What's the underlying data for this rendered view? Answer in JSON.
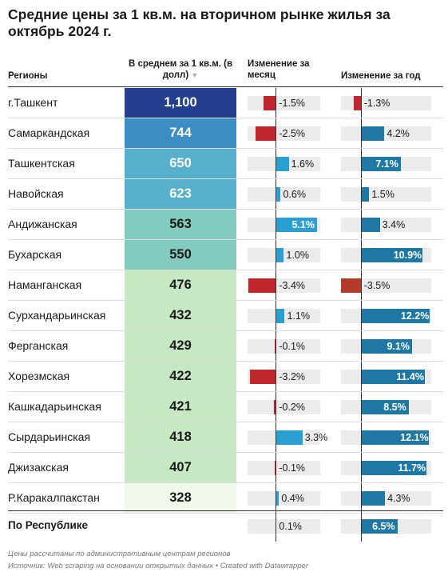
{
  "chart_data": {
    "type": "table",
    "title": "Средние цены за 1 кв.м. на вторичном рынке жилья за октябрь 2024 г.",
    "columns": {
      "region": "Регионы",
      "price": "В среднем за 1 кв.м. (в долл)",
      "sort_icon": "▼",
      "month": "Изменение за месяц",
      "year": "Изменение за год"
    },
    "rows": [
      {
        "region": "г.Ташкент",
        "price": "1,100",
        "month": "-1.5%",
        "year": "-1.3%",
        "price_value": 1100,
        "month_value": -1.5,
        "year_value": -1.3
      },
      {
        "region": "Самаркандская",
        "price": "744",
        "month": "-2.5%",
        "year": "4.2%",
        "price_value": 744,
        "month_value": -2.5,
        "year_value": 4.2
      },
      {
        "region": "Ташкентская",
        "price": "650",
        "month": "1.6%",
        "year": "7.1%",
        "price_value": 650,
        "month_value": 1.6,
        "year_value": 7.1
      },
      {
        "region": "Навойская",
        "price": "623",
        "month": "0.6%",
        "year": "1.5%",
        "price_value": 623,
        "month_value": 0.6,
        "year_value": 1.5
      },
      {
        "region": "Андижанская",
        "price": "563",
        "month": "5.1%",
        "year": "3.4%",
        "price_value": 563,
        "month_value": 5.1,
        "year_value": 3.4
      },
      {
        "region": "Бухарская",
        "price": "550",
        "month": "1.0%",
        "year": "10.9%",
        "price_value": 550,
        "month_value": 1.0,
        "year_value": 10.9
      },
      {
        "region": "Наманганская",
        "price": "476",
        "month": "-3.4%",
        "year": "-3.5%",
        "price_value": 476,
        "month_value": -3.4,
        "year_value": -3.5
      },
      {
        "region": "Сурхандарьинская",
        "price": "432",
        "month": "1.1%",
        "year": "12.2%",
        "price_value": 432,
        "month_value": 1.1,
        "year_value": 12.2
      },
      {
        "region": "Ферганская",
        "price": "429",
        "month": "-0.1%",
        "year": "9.1%",
        "price_value": 429,
        "month_value": -0.1,
        "year_value": 9.1
      },
      {
        "region": "Хорезмская",
        "price": "422",
        "month": "-3.2%",
        "year": "11.4%",
        "price_value": 422,
        "month_value": -3.2,
        "year_value": 11.4
      },
      {
        "region": "Кашкадарьинская",
        "price": "421",
        "month": "-0.2%",
        "year": "8.5%",
        "price_value": 421,
        "month_value": -0.2,
        "year_value": 8.5
      },
      {
        "region": "Сырдарьинская",
        "price": "418",
        "month": "3.3%",
        "year": "12.1%",
        "price_value": 418,
        "month_value": 3.3,
        "year_value": 12.1
      },
      {
        "region": "Джизакская",
        "price": "407",
        "month": "-0.1%",
        "year": "11.7%",
        "price_value": 407,
        "month_value": -0.1,
        "year_value": 11.7
      },
      {
        "region": "Р.Каракалпакстан",
        "price": "328",
        "month": "0.4%",
        "year": "4.3%",
        "price_value": 328,
        "month_value": 0.4,
        "year_value": 4.3
      }
    ],
    "total": {
      "region": "По Республике",
      "month": "0.1%",
      "year": "6.5%",
      "month_value": 0.1,
      "year_value": 6.5
    },
    "month_range": [
      -3.5,
      5.5
    ],
    "year_range": [
      -3.5,
      12.5
    ]
  },
  "footer": {
    "note": "Цены рассчитаны по административным центрам регионов",
    "source": "Источник: Web scraping на основании открытых данных • Created with Datawrapper"
  },
  "colors": {
    "negative": "#c0272d",
    "negative_strong": "#b43a2a",
    "positive_month": "#2b9fd1",
    "positive_year": "#1f78a4",
    "track": "#ebebeb",
    "price_scale": [
      "#f0f8ec",
      "#c6e8c2",
      "#83cbbf",
      "#56b0cc",
      "#3b8fc4",
      "#243f8f"
    ]
  }
}
